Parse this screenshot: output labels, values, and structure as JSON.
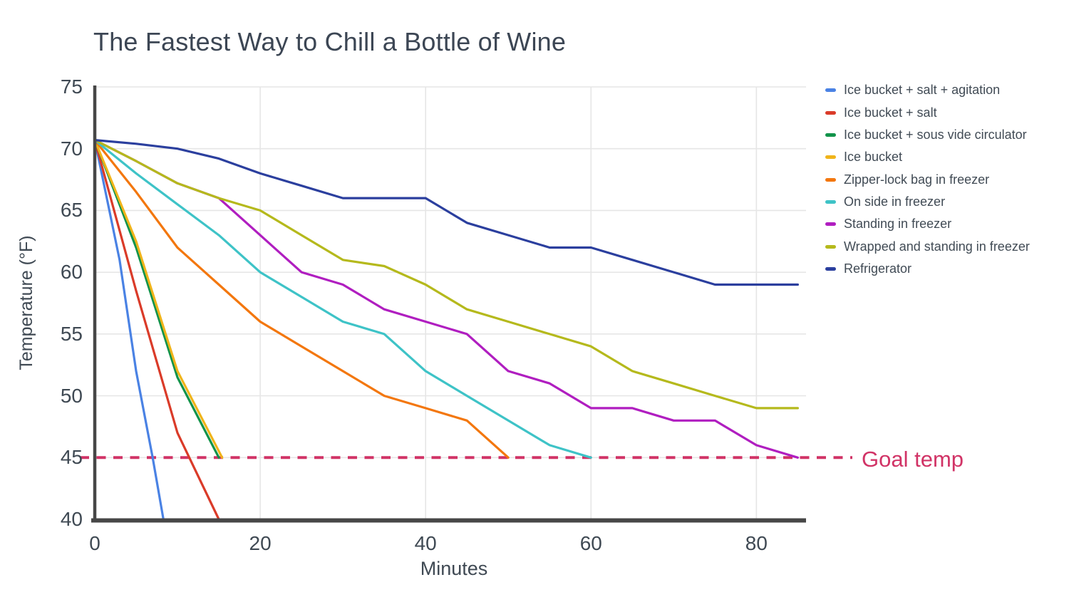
{
  "title": "The Fastest Way to Chill a Bottle of Wine",
  "colors": {
    "background": "#ffffff",
    "title_text": "#3c4654",
    "tick_text": "#3f4953",
    "legend_text": "#414b55",
    "grid": "#e6e6e6",
    "axis": "#474747",
    "goal": "#d13366"
  },
  "chart_data": {
    "type": "line",
    "title": "The Fastest Way to Chill a Bottle of Wine",
    "xlabel": "Minutes",
    "ylabel": "Temperature (°F)",
    "xlim": [
      0,
      86
    ],
    "ylim": [
      40,
      75
    ],
    "x_ticks": [
      0,
      20,
      40,
      60,
      80
    ],
    "y_ticks": [
      40,
      45,
      50,
      55,
      60,
      65,
      70,
      75
    ],
    "grid": true,
    "legend_position": "right",
    "start_temp_f": 70.7,
    "goal_line": {
      "label": "Goal temp",
      "value": 45,
      "style": "dashed",
      "color": "#d13366"
    },
    "series": [
      {
        "name": "Ice bucket + salt + agitation",
        "color": "#4a82e4",
        "points": [
          [
            0,
            70.7
          ],
          [
            3,
            61
          ],
          [
            5,
            52
          ],
          [
            7,
            45
          ],
          [
            8.3,
            40
          ]
        ]
      },
      {
        "name": "Ice bucket + salt",
        "color": "#da3b29",
        "points": [
          [
            0,
            70.7
          ],
          [
            5,
            58.5
          ],
          [
            10,
            47
          ],
          [
            15,
            40
          ]
        ]
      },
      {
        "name": "Ice bucket + sous vide circulator",
        "color": "#12934a",
        "points": [
          [
            0,
            70.7
          ],
          [
            5,
            62
          ],
          [
            10,
            51.5
          ],
          [
            15,
            45
          ]
        ]
      },
      {
        "name": "Ice bucket",
        "color": "#f0b41a",
        "points": [
          [
            0,
            70.7
          ],
          [
            5,
            62.5
          ],
          [
            10,
            52
          ],
          [
            15.4,
            45
          ]
        ]
      },
      {
        "name": "Zipper-lock bag in freezer",
        "color": "#f3770e",
        "points": [
          [
            0,
            70.7
          ],
          [
            5,
            66.5
          ],
          [
            10,
            62
          ],
          [
            15,
            59
          ],
          [
            20,
            56
          ],
          [
            25,
            54
          ],
          [
            30,
            52
          ],
          [
            35,
            50
          ],
          [
            40,
            49
          ],
          [
            45,
            48
          ],
          [
            50,
            45
          ]
        ]
      },
      {
        "name": "On side in freezer",
        "color": "#3ec3c7",
        "points": [
          [
            0,
            70.7
          ],
          [
            5,
            68
          ],
          [
            10,
            65.5
          ],
          [
            15,
            63
          ],
          [
            20,
            60
          ],
          [
            25,
            58
          ],
          [
            30,
            56
          ],
          [
            35,
            55
          ],
          [
            40,
            52
          ],
          [
            45,
            50
          ],
          [
            50,
            48
          ],
          [
            55,
            46
          ],
          [
            60,
            45
          ]
        ]
      },
      {
        "name": "Standing in freezer",
        "color": "#b01ec0",
        "points": [
          [
            0,
            70.7
          ],
          [
            5,
            69
          ],
          [
            10,
            67.2
          ],
          [
            15,
            66
          ],
          [
            20,
            63
          ],
          [
            25,
            60
          ],
          [
            30,
            59
          ],
          [
            35,
            57
          ],
          [
            40,
            56
          ],
          [
            45,
            55
          ],
          [
            50,
            52
          ],
          [
            55,
            51
          ],
          [
            60,
            49
          ],
          [
            65,
            49
          ],
          [
            70,
            48
          ],
          [
            75,
            48
          ],
          [
            80,
            46
          ],
          [
            85,
            45
          ]
        ]
      },
      {
        "name": "Wrapped and standing in freezer",
        "color": "#b5b91c",
        "points": [
          [
            0,
            70.7
          ],
          [
            5,
            69
          ],
          [
            10,
            67.2
          ],
          [
            15,
            66
          ],
          [
            20,
            65
          ],
          [
            25,
            63
          ],
          [
            30,
            61
          ],
          [
            35,
            60.5
          ],
          [
            40,
            59
          ],
          [
            45,
            57
          ],
          [
            50,
            56
          ],
          [
            55,
            55
          ],
          [
            60,
            54
          ],
          [
            65,
            52
          ],
          [
            70,
            51
          ],
          [
            75,
            50
          ],
          [
            80,
            49
          ],
          [
            85,
            49
          ]
        ]
      },
      {
        "name": "Refrigerator",
        "color": "#2b3f9e",
        "points": [
          [
            0,
            70.7
          ],
          [
            5,
            70.4
          ],
          [
            10,
            70
          ],
          [
            15,
            69.2
          ],
          [
            20,
            68
          ],
          [
            25,
            67
          ],
          [
            30,
            66
          ],
          [
            35,
            66
          ],
          [
            40,
            66
          ],
          [
            45,
            64
          ],
          [
            50,
            63
          ],
          [
            55,
            62
          ],
          [
            60,
            62
          ],
          [
            65,
            61
          ],
          [
            70,
            60
          ],
          [
            75,
            59
          ],
          [
            80,
            59
          ],
          [
            85,
            59
          ]
        ]
      }
    ]
  }
}
